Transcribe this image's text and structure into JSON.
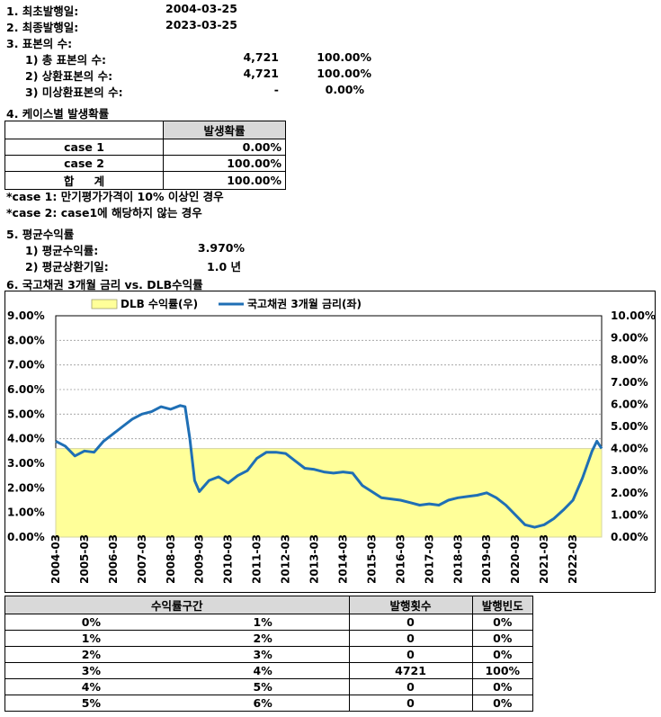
{
  "summary": {
    "first_issue_label": "1. 최초발행일:",
    "first_issue_value": "2004-03-25",
    "last_issue_label": "2. 최종발행일:",
    "last_issue_value": "2023-03-25",
    "sample_title": "3. 표본의 수:",
    "samples": [
      {
        "label": "1) 총 표본의 수:",
        "count": "4,721",
        "pct": "100.00%"
      },
      {
        "label": "2) 상환표본의 수:",
        "count": "4,721",
        "pct": "100.00%"
      },
      {
        "label": "3) 미상환표본의 수:",
        "count": "-",
        "pct": "0.00%"
      }
    ]
  },
  "case_section": {
    "title": "4. 케이스별 발생확률",
    "header": "발생확률",
    "rows": [
      {
        "name": "case 1",
        "value": "0.00%"
      },
      {
        "name": "case 2",
        "value": "100.00%"
      },
      {
        "name": "합 계",
        "value": "100.00%"
      }
    ],
    "notes": [
      "*case 1: 만기평가가격이 10% 이상인 경우",
      "*case 2: case1에 해당하지 않는 경우"
    ]
  },
  "avg_section": {
    "title": "5. 평균수익률",
    "rows": [
      {
        "label": "1) 평균수익률:",
        "value": "3.970%"
      },
      {
        "label": "2) 평균상환기일:",
        "value": "1.0 년"
      }
    ]
  },
  "chart_section": {
    "title": "6. 국고채권 3개월 금리 vs. DLB수익률"
  },
  "chart_data": {
    "type": "line",
    "legend_position": "top",
    "series": [
      {
        "name": "DLB 수익률(우)",
        "kind": "area",
        "axis": "right",
        "color": "#ffff99",
        "edge_color": "#d4d4a0",
        "x": [
          "2004-03",
          "2023-03"
        ],
        "values": [
          4.0,
          4.0
        ]
      },
      {
        "name": "국고채권 3개월 금리(좌)",
        "kind": "line",
        "axis": "left",
        "color": "#1f6fb5",
        "x": [
          "2004-03",
          "2004-07",
          "2004-11",
          "2005-03",
          "2005-07",
          "2005-11",
          "2006-03",
          "2006-07",
          "2006-11",
          "2007-03",
          "2007-07",
          "2007-11",
          "2008-03",
          "2008-07",
          "2008-09",
          "2008-11",
          "2009-01",
          "2009-03",
          "2009-07",
          "2009-11",
          "2010-03",
          "2010-07",
          "2010-11",
          "2011-03",
          "2011-07",
          "2011-11",
          "2012-03",
          "2012-07",
          "2012-11",
          "2013-03",
          "2013-07",
          "2013-11",
          "2014-03",
          "2014-07",
          "2014-11",
          "2015-03",
          "2015-07",
          "2015-11",
          "2016-03",
          "2016-07",
          "2016-11",
          "2017-03",
          "2017-07",
          "2017-11",
          "2018-03",
          "2018-07",
          "2018-11",
          "2019-03",
          "2019-07",
          "2019-11",
          "2020-03",
          "2020-07",
          "2020-11",
          "2021-03",
          "2021-07",
          "2021-11",
          "2022-03",
          "2022-07",
          "2022-11",
          "2023-01",
          "2023-03"
        ],
        "values": [
          3.9,
          3.7,
          3.3,
          3.5,
          3.45,
          3.9,
          4.2,
          4.5,
          4.8,
          5.0,
          5.1,
          5.3,
          5.2,
          5.35,
          5.3,
          4.0,
          2.3,
          1.85,
          2.3,
          2.45,
          2.2,
          2.5,
          2.7,
          3.2,
          3.45,
          3.45,
          3.4,
          3.1,
          2.8,
          2.75,
          2.65,
          2.6,
          2.65,
          2.6,
          2.1,
          1.85,
          1.6,
          1.55,
          1.5,
          1.4,
          1.3,
          1.35,
          1.3,
          1.5,
          1.6,
          1.65,
          1.7,
          1.8,
          1.6,
          1.3,
          0.9,
          0.5,
          0.4,
          0.5,
          0.75,
          1.1,
          1.5,
          2.4,
          3.5,
          3.9,
          3.6
        ]
      }
    ],
    "x_ticks": [
      "2004-03",
      "2005-03",
      "2006-03",
      "2007-03",
      "2008-03",
      "2009-03",
      "2010-03",
      "2011-03",
      "2012-03",
      "2013-03",
      "2014-03",
      "2015-03",
      "2016-03",
      "2017-03",
      "2018-03",
      "2019-03",
      "2020-03",
      "2021-03",
      "2022-03"
    ],
    "y_left": {
      "range": [
        0,
        9
      ],
      "ticks": [
        "9.00%",
        "8.00%",
        "7.00%",
        "6.00%",
        "5.00%",
        "4.00%",
        "3.00%",
        "2.00%",
        "1.00%",
        "0.00%"
      ]
    },
    "y_right": {
      "range": [
        0,
        10
      ],
      "ticks": [
        "10.00%",
        "9.00%",
        "8.00%",
        "7.00%",
        "6.00%",
        "5.00%",
        "4.00%",
        "3.00%",
        "2.00%",
        "1.00%",
        "0.00%"
      ]
    },
    "grid": true
  },
  "dist_table": {
    "headers": [
      "수익률구간",
      "발행횟수",
      "발행빈도"
    ],
    "rows": [
      {
        "from": "0%",
        "to": "1%",
        "count": "0",
        "freq": "0%"
      },
      {
        "from": "1%",
        "to": "2%",
        "count": "0",
        "freq": "0%"
      },
      {
        "from": "2%",
        "to": "3%",
        "count": "0",
        "freq": "0%"
      },
      {
        "from": "3%",
        "to": "4%",
        "count": "4721",
        "freq": "100%"
      },
      {
        "from": "4%",
        "to": "5%",
        "count": "0",
        "freq": "0%"
      },
      {
        "from": "5%",
        "to": "6%",
        "count": "0",
        "freq": "0%"
      }
    ]
  }
}
